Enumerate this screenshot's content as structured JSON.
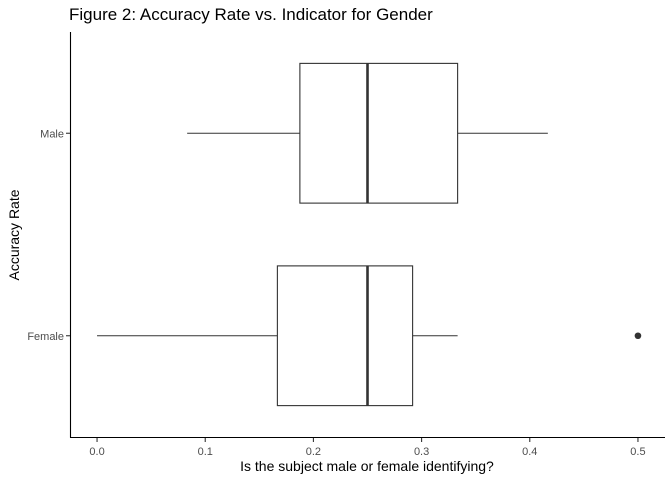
{
  "chart_data": {
    "type": "boxplot",
    "orientation": "horizontal",
    "title": "Figure 2: Accuracy Rate vs. Indicator for Gender",
    "xlabel": "Is the subject male or female identifying?",
    "ylabel": "Accuracy Rate",
    "xlim": [
      -0.025,
      0.525
    ],
    "xticks": [
      0.0,
      0.1,
      0.2,
      0.3,
      0.4,
      0.5
    ],
    "xtick_labels": [
      "0.0",
      "0.1",
      "0.2",
      "0.3",
      "0.4",
      "0.5"
    ],
    "grid": false,
    "categories": [
      "Male",
      "Female"
    ],
    "boxes": [
      {
        "category": "Male",
        "whisker_low": 0.0833,
        "q1": 0.1875,
        "median": 0.25,
        "q3": 0.3333,
        "whisker_high": 0.4167,
        "outliers": []
      },
      {
        "category": "Female",
        "whisker_low": 0.0,
        "q1": 0.1667,
        "median": 0.25,
        "q3": 0.2917,
        "whisker_high": 0.3333,
        "outliers": [
          0.5
        ]
      }
    ],
    "colors": {
      "stroke": "#333333",
      "fill": "#ffffff",
      "axis": "#000000",
      "tick_text": "#4d4d4d"
    }
  }
}
